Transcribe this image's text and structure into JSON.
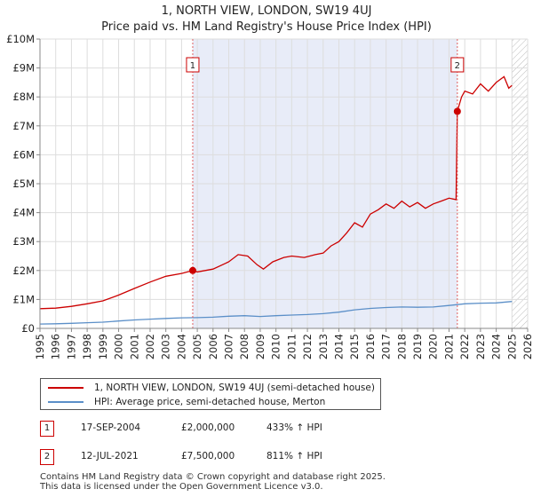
{
  "chart_data": {
    "type": "line",
    "title": "1, NORTH VIEW, LONDON, SW19 4UJ",
    "subtitle": "Price paid vs. HM Land Registry's House Price Index (HPI)",
    "xlim": [
      1995,
      2026
    ],
    "ylim": [
      0,
      10000000
    ],
    "x_ticks": [
      "1995",
      "1996",
      "1997",
      "1998",
      "1999",
      "2000",
      "2001",
      "2002",
      "2003",
      "2004",
      "2005",
      "2006",
      "2007",
      "2008",
      "2009",
      "2010",
      "2011",
      "2012",
      "2013",
      "2014",
      "2015",
      "2016",
      "2017",
      "2018",
      "2019",
      "2020",
      "2021",
      "2022",
      "2023",
      "2024",
      "2025",
      "2026"
    ],
    "y_ticks": [
      {
        "value": 0,
        "label": "£0"
      },
      {
        "value": 1000000,
        "label": "£1M"
      },
      {
        "value": 2000000,
        "label": "£2M"
      },
      {
        "value": 3000000,
        "label": "£3M"
      },
      {
        "value": 4000000,
        "label": "£4M"
      },
      {
        "value": 5000000,
        "label": "£5M"
      },
      {
        "value": 6000000,
        "label": "£6M"
      },
      {
        "value": 7000000,
        "label": "£7M"
      },
      {
        "value": 8000000,
        "label": "£8M"
      },
      {
        "value": 9000000,
        "label": "£9M"
      },
      {
        "value": 10000000,
        "label": "£10M"
      }
    ],
    "shaded_region": [
      2004.71,
      2021.53
    ],
    "hatched_region": [
      2025.0,
      2026
    ],
    "series": [
      {
        "name": "1, NORTH VIEW, LONDON, SW19 4UJ (semi-detached house)",
        "color": "#cc0000",
        "x": [
          1995.0,
          1996.0,
          1997.0,
          1998.0,
          1999.0,
          2000.0,
          2001.0,
          2002.0,
          2003.0,
          2004.0,
          2004.71,
          2005.0,
          2006.0,
          2007.0,
          2007.6,
          2008.2,
          2008.8,
          2009.2,
          2009.8,
          2010.5,
          2011.0,
          2011.8,
          2012.5,
          2013.0,
          2013.5,
          2014.0,
          2014.5,
          2015.0,
          2015.5,
          2016.0,
          2016.5,
          2017.0,
          2017.5,
          2018.0,
          2018.5,
          2019.0,
          2019.5,
          2020.0,
          2020.5,
          2021.0,
          2021.45,
          2021.53,
          2021.8,
          2022.0,
          2022.5,
          2023.0,
          2023.5,
          2024.0,
          2024.5,
          2024.8,
          2025.0
        ],
        "values": [
          680000,
          700000,
          760000,
          850000,
          950000,
          1150000,
          1380000,
          1600000,
          1800000,
          1900000,
          2000000,
          1950000,
          2050000,
          2300000,
          2550000,
          2500000,
          2200000,
          2050000,
          2300000,
          2450000,
          2500000,
          2450000,
          2550000,
          2600000,
          2850000,
          3000000,
          3300000,
          3650000,
          3500000,
          3950000,
          4100000,
          4300000,
          4150000,
          4400000,
          4200000,
          4350000,
          4150000,
          4300000,
          4400000,
          4500000,
          4450000,
          7500000,
          8000000,
          8200000,
          8100000,
          8450000,
          8200000,
          8500000,
          8700000,
          8300000,
          8400000
        ]
      },
      {
        "name": "HPI: Average price, semi-detached house, Merton",
        "color": "#5b8fc8",
        "x": [
          1995.0,
          1996.0,
          1997.0,
          1998.0,
          1999.0,
          2000.0,
          2001.0,
          2002.0,
          2003.0,
          2004.0,
          2005.0,
          2006.0,
          2007.0,
          2008.0,
          2009.0,
          2010.0,
          2011.0,
          2012.0,
          2013.0,
          2014.0,
          2015.0,
          2016.0,
          2017.0,
          2018.0,
          2019.0,
          2020.0,
          2021.0,
          2022.0,
          2023.0,
          2024.0,
          2025.0
        ],
        "values": [
          150000,
          160000,
          175000,
          195000,
          215000,
          255000,
          290000,
          320000,
          345000,
          365000,
          370000,
          385000,
          420000,
          440000,
          410000,
          440000,
          460000,
          480000,
          510000,
          560000,
          640000,
          690000,
          720000,
          740000,
          730000,
          740000,
          790000,
          850000,
          870000,
          880000,
          930000
        ]
      }
    ],
    "annotations": [
      {
        "label": "1",
        "x": 2004.71,
        "y": 2000000
      },
      {
        "label": "2",
        "x": 2021.53,
        "y": 7500000
      }
    ]
  },
  "legend": {
    "property_label": "1, NORTH VIEW, LONDON, SW19 4UJ (semi-detached house)",
    "hpi_label": "HPI: Average price, semi-detached house, Merton"
  },
  "sales": [
    {
      "num": "1",
      "date": "17-SEP-2004",
      "price": "£2,000,000",
      "hpi": "433% ↑ HPI"
    },
    {
      "num": "2",
      "date": "12-JUL-2021",
      "price": "£7,500,000",
      "hpi": "811% ↑ HPI"
    }
  ],
  "footer": {
    "line1": "Contains HM Land Registry data © Crown copyright and database right 2025.",
    "line2": "This data is licensed under the Open Government Licence v3.0."
  }
}
